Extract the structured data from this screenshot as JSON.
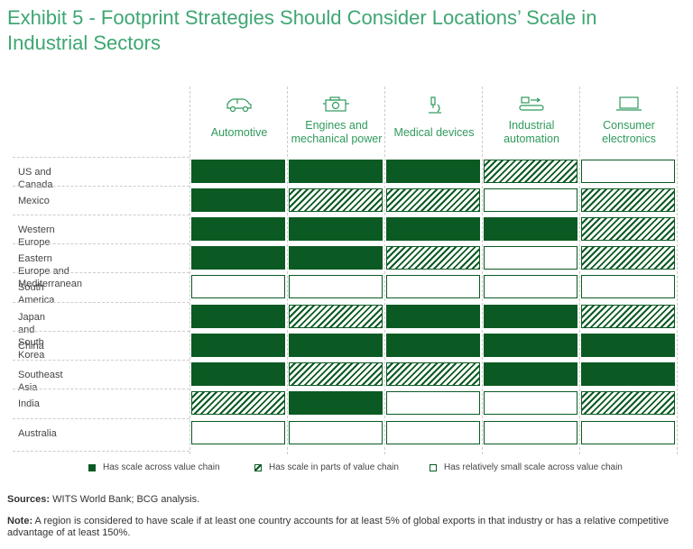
{
  "title": "Exhibit 5 - Footprint Strategies Should Consider Locations’ Scale in Industrial Sectors",
  "chart_data": {
    "type": "table",
    "columns": [
      {
        "label": "Automotive",
        "icon": "car-icon"
      },
      {
        "label": "Engines and mechanical power",
        "icon": "engine-icon"
      },
      {
        "label": "Medical devices",
        "icon": "microscope-icon"
      },
      {
        "label": "Industrial automation",
        "icon": "conveyor-icon"
      },
      {
        "label": "Consumer electronics",
        "icon": "laptop-icon"
      }
    ],
    "rows": [
      {
        "label": "US and Canada",
        "values": [
          "full",
          "full",
          "full",
          "partial",
          "small"
        ]
      },
      {
        "label": "Mexico",
        "values": [
          "full",
          "partial",
          "partial",
          "small",
          "partial"
        ]
      },
      {
        "label": "Western Europe",
        "values": [
          "full",
          "full",
          "full",
          "full",
          "partial"
        ]
      },
      {
        "label": "Eastern Europe and Mediterranean",
        "values": [
          "full",
          "full",
          "partial",
          "small",
          "partial"
        ]
      },
      {
        "label": "South America",
        "values": [
          "small",
          "small",
          "small",
          "small",
          "small"
        ]
      },
      {
        "label": "Japan and South Korea",
        "values": [
          "full",
          "partial",
          "full",
          "full",
          "partial"
        ]
      },
      {
        "label": "China",
        "values": [
          "full",
          "full",
          "full",
          "full",
          "full"
        ]
      },
      {
        "label": "Southeast Asia",
        "values": [
          "full",
          "partial",
          "partial",
          "full",
          "full"
        ]
      },
      {
        "label": "India",
        "values": [
          "partial",
          "full",
          "small",
          "small",
          "partial"
        ]
      },
      {
        "label": "Australia",
        "values": [
          "small",
          "small",
          "small",
          "small",
          "small"
        ]
      }
    ],
    "legend": [
      {
        "key": "full",
        "label": "Has scale across value chain"
      },
      {
        "key": "partial",
        "label": "Has scale in parts of value chain"
      },
      {
        "key": "small",
        "label": "Has relatively small scale across value chain"
      }
    ],
    "colors": {
      "full": "#0b5a23",
      "accent": "#3ea672"
    }
  },
  "footer": {
    "sources_label": "Sources:",
    "sources_text": " WITS World Bank; BCG analysis.",
    "note_label": "Note:",
    "note_text": " A region is considered to have scale if at least one country accounts for at least 5% of global exports in that industry or has a relative competitive advantage of at least 150%."
  }
}
